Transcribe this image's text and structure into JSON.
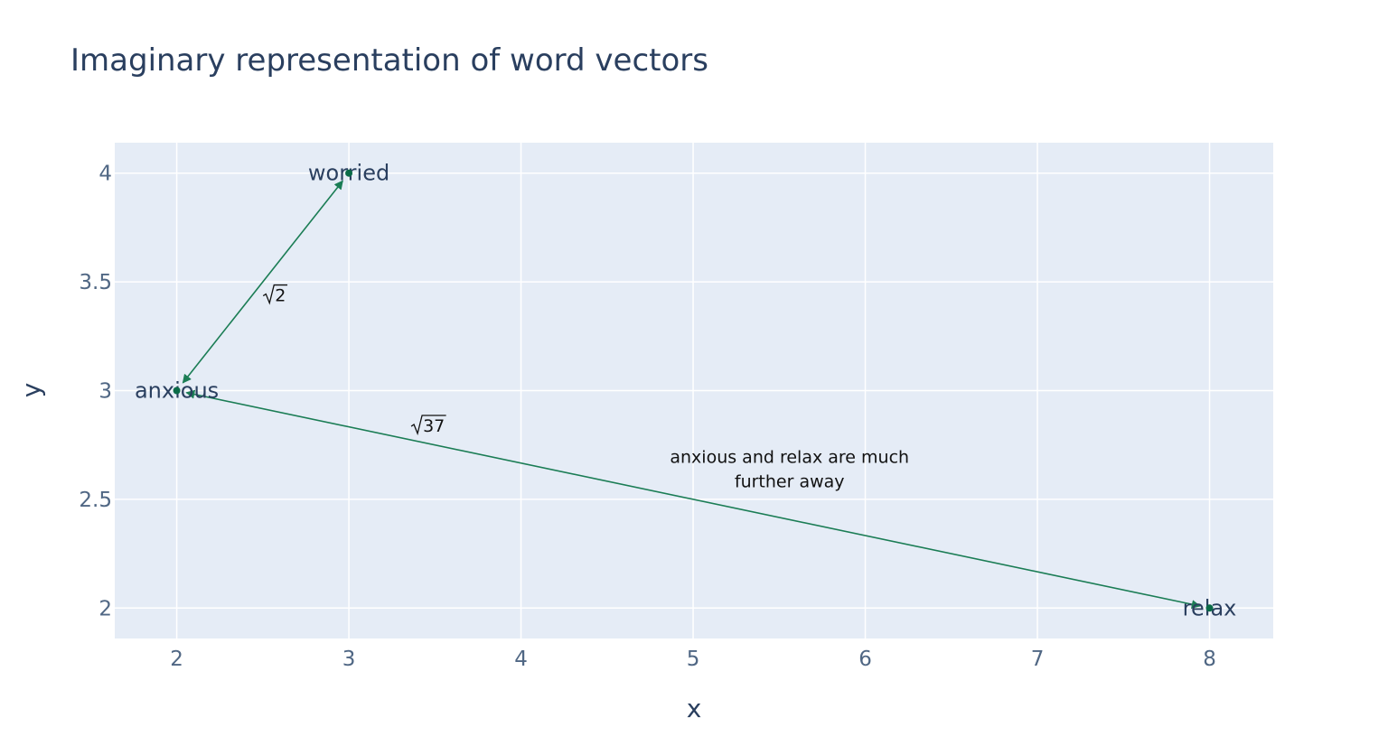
{
  "chart_data": {
    "type": "scatter",
    "title": "Imaginary representation of word vectors",
    "xlabel": "x",
    "ylabel": "y",
    "xlim": [
      1.64,
      8.37
    ],
    "ylim": [
      1.86,
      4.14
    ],
    "xticks": [
      2,
      3,
      4,
      5,
      6,
      7,
      8
    ],
    "yticks": [
      2,
      2.5,
      3,
      3.5,
      4
    ],
    "ytick_labels": [
      "2",
      "2.5",
      "3",
      "3.5",
      "4"
    ],
    "grid": true,
    "points": [
      {
        "label": "worried",
        "x": 3,
        "y": 4
      },
      {
        "label": "anxious",
        "x": 2,
        "y": 3
      },
      {
        "label": "relax",
        "x": 8,
        "y": 2
      }
    ],
    "arrows": [
      {
        "from": "anxious",
        "to": "worried",
        "label_radicand": "2",
        "label_x": 2.56,
        "label_y": 3.44
      },
      {
        "from": "anxious",
        "to": "relax",
        "label_radicand": "37",
        "label_x": 3.42,
        "label_y": 2.84
      }
    ],
    "annotations": [
      {
        "lines": [
          "anxious and relax are much",
          "further away"
        ],
        "x": 5.56,
        "y": 2.64
      }
    ],
    "colors": {
      "plot_bg": "#e5ecf6",
      "grid": "#ffffff",
      "marker": "#0a6b47",
      "arrow": "#1b7d55",
      "text": "#2a3f5f",
      "axis_text": "#506784"
    }
  }
}
